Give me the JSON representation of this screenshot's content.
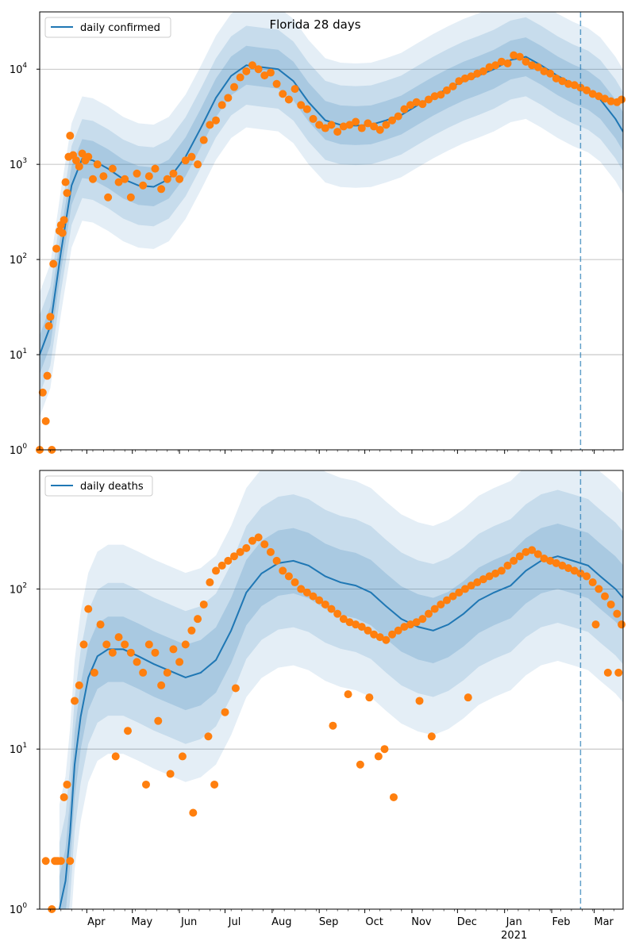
{
  "figure": {
    "title": "Florida 28 days"
  },
  "colors": {
    "line": "#1f77b4",
    "band": "#1f77b4",
    "points": "#ff7f0e",
    "grid": "#b0b0b0",
    "marker_line": "#1f77b4"
  },
  "chart_data": [
    {
      "type": "line",
      "name": "confirmed",
      "title": "Florida 28 days",
      "y_scale": "log",
      "ylim": [
        1,
        40000
      ],
      "xlim": [
        "2020-03-01",
        "2021-03-20"
      ],
      "y_ticks": [
        {
          "value": 1,
          "base": "10",
          "exp": "0"
        },
        {
          "value": 10,
          "base": "10",
          "exp": "1"
        },
        {
          "value": 100,
          "base": "10",
          "exp": "2"
        },
        {
          "value": 1000,
          "base": "10",
          "exp": "3"
        },
        {
          "value": 10000,
          "base": "10",
          "exp": "4"
        }
      ],
      "grid": "horizontal",
      "legend_position": "top-left",
      "series": [
        {
          "name": "daily confirmed"
        }
      ],
      "vertical_marker": "2021-02-20",
      "x_model": [
        "2020-03-01",
        "2020-03-08",
        "2020-03-15",
        "2020-03-22",
        "2020-03-29",
        "2020-04-05",
        "2020-04-15",
        "2020-04-25",
        "2020-05-05",
        "2020-05-15",
        "2020-05-25",
        "2020-06-05",
        "2020-06-15",
        "2020-06-25",
        "2020-07-05",
        "2020-07-15",
        "2020-07-25",
        "2020-08-05",
        "2020-08-15",
        "2020-08-25",
        "2020-09-05",
        "2020-09-15",
        "2020-09-25",
        "2020-10-05",
        "2020-10-15",
        "2020-10-25",
        "2020-11-05",
        "2020-11-15",
        "2020-11-25",
        "2020-12-05",
        "2020-12-15",
        "2020-12-25",
        "2021-01-05",
        "2021-01-15",
        "2021-01-25",
        "2021-02-05",
        "2021-02-15",
        "2021-02-25",
        "2021-03-05",
        "2021-03-15",
        "2021-03-20"
      ],
      "model": [
        10,
        20,
        120,
        600,
        1150,
        1100,
        900,
        700,
        600,
        580,
        700,
        1200,
        2400,
        5000,
        8500,
        11000,
        10500,
        10000,
        7500,
        4500,
        2900,
        2600,
        2550,
        2600,
        2900,
        3300,
        4200,
        5200,
        6300,
        7500,
        8600,
        10000,
        12500,
        13500,
        11000,
        8500,
        7000,
        6000,
        4800,
        3000,
        2200
      ],
      "observed": {
        "x": [
          "2020-03-01",
          "2020-03-03",
          "2020-03-05",
          "2020-03-06",
          "2020-03-07",
          "2020-03-08",
          "2020-03-09",
          "2020-03-10",
          "2020-03-12",
          "2020-03-14",
          "2020-03-15",
          "2020-03-16",
          "2020-03-17",
          "2020-03-18",
          "2020-03-19",
          "2020-03-20",
          "2020-03-21",
          "2020-03-23",
          "2020-03-25",
          "2020-03-27",
          "2020-03-29",
          "2020-03-31",
          "2020-04-02",
          "2020-04-05",
          "2020-04-08",
          "2020-04-12",
          "2020-04-15",
          "2020-04-18",
          "2020-04-22",
          "2020-04-26",
          "2020-04-30",
          "2020-05-04",
          "2020-05-08",
          "2020-05-12",
          "2020-05-16",
          "2020-05-20",
          "2020-05-24",
          "2020-05-28",
          "2020-06-01",
          "2020-06-05",
          "2020-06-09",
          "2020-06-13",
          "2020-06-17",
          "2020-06-21",
          "2020-06-25",
          "2020-06-29",
          "2020-07-03",
          "2020-07-07",
          "2020-07-11",
          "2020-07-15",
          "2020-07-19",
          "2020-07-23",
          "2020-07-27",
          "2020-07-31",
          "2020-08-04",
          "2020-08-08",
          "2020-08-12",
          "2020-08-16",
          "2020-08-20",
          "2020-08-24",
          "2020-08-28",
          "2020-09-01",
          "2020-09-05",
          "2020-09-09",
          "2020-09-13",
          "2020-09-17",
          "2020-09-21",
          "2020-09-25",
          "2020-09-29",
          "2020-10-03",
          "2020-10-07",
          "2020-10-11",
          "2020-10-15",
          "2020-10-19",
          "2020-10-23",
          "2020-10-27",
          "2020-10-31",
          "2020-11-04",
          "2020-11-08",
          "2020-11-12",
          "2020-11-16",
          "2020-11-20",
          "2020-11-24",
          "2020-11-28",
          "2020-12-02",
          "2020-12-06",
          "2020-12-10",
          "2020-12-14",
          "2020-12-18",
          "2020-12-22",
          "2020-12-26",
          "2020-12-30",
          "2021-01-03",
          "2021-01-07",
          "2021-01-11",
          "2021-01-15",
          "2021-01-19",
          "2021-01-23",
          "2021-01-27",
          "2021-01-31",
          "2021-02-04",
          "2021-02-08",
          "2021-02-12",
          "2021-02-16",
          "2021-02-20",
          "2021-02-24",
          "2021-02-28",
          "2021-03-04",
          "2021-03-08",
          "2021-03-12",
          "2021-03-16",
          "2021-03-19"
        ],
        "y": [
          1,
          4,
          2,
          6,
          20,
          25,
          1,
          90,
          130,
          200,
          230,
          190,
          260,
          650,
          500,
          1200,
          2000,
          1250,
          1100,
          950,
          1300,
          1100,
          1200,
          700,
          1000,
          750,
          450,
          900,
          650,
          700,
          450,
          800,
          600,
          750,
          900,
          550,
          700,
          800,
          700,
          1100,
          1200,
          1000,
          1800,
          2600,
          2900,
          4200,
          5000,
          6500,
          8200,
          9500,
          11000,
          10000,
          8600,
          9200,
          7000,
          5500,
          4800,
          6200,
          4200,
          3800,
          3000,
          2600,
          2400,
          2600,
          2200,
          2500,
          2600,
          2800,
          2400,
          2700,
          2500,
          2300,
          2600,
          2900,
          3200,
          3800,
          4200,
          4500,
          4300,
          4800,
          5200,
          5400,
          6000,
          6600,
          7500,
          8000,
          8400,
          9000,
          9500,
          10500,
          11000,
          12000,
          11500,
          14000,
          13500,
          12000,
          11000,
          10500,
          9500,
          9000,
          8000,
          7500,
          7000,
          6800,
          6400,
          6000,
          5500,
          5200,
          4900,
          4600,
          4500,
          4800
        ]
      }
    },
    {
      "type": "line",
      "name": "deaths",
      "y_scale": "log",
      "ylim": [
        1,
        550
      ],
      "xlim": [
        "2020-03-01",
        "2021-03-20"
      ],
      "y_ticks": [
        {
          "value": 1,
          "base": "10",
          "exp": "0"
        },
        {
          "value": 10,
          "base": "10",
          "exp": "1"
        },
        {
          "value": 100,
          "base": "10",
          "exp": "2"
        }
      ],
      "grid": "horizontal",
      "legend_position": "top-left",
      "series": [
        {
          "name": "daily deaths"
        }
      ],
      "vertical_marker": "2021-02-20",
      "x_ticks": [
        {
          "date": "2020-04-01",
          "label": "Apr"
        },
        {
          "date": "2020-05-01",
          "label": "May"
        },
        {
          "date": "2020-06-01",
          "label": "Jun"
        },
        {
          "date": "2020-07-01",
          "label": "Jul"
        },
        {
          "date": "2020-08-01",
          "label": "Aug"
        },
        {
          "date": "2020-09-01",
          "label": "Sep"
        },
        {
          "date": "2020-10-01",
          "label": "Oct"
        },
        {
          "date": "2020-11-01",
          "label": "Nov"
        },
        {
          "date": "2020-12-01",
          "label": "Dec"
        },
        {
          "date": "2021-01-01",
          "label": "Jan",
          "sub": "2021"
        },
        {
          "date": "2021-02-01",
          "label": "Feb"
        },
        {
          "date": "2021-03-01",
          "label": "Mar"
        }
      ],
      "x_model": [
        "2020-03-14",
        "2020-03-18",
        "2020-03-21",
        "2020-03-24",
        "2020-03-28",
        "2020-04-02",
        "2020-04-08",
        "2020-04-15",
        "2020-04-25",
        "2020-05-05",
        "2020-05-15",
        "2020-05-25",
        "2020-06-05",
        "2020-06-15",
        "2020-06-25",
        "2020-07-05",
        "2020-07-15",
        "2020-07-25",
        "2020-08-05",
        "2020-08-15",
        "2020-08-25",
        "2020-09-05",
        "2020-09-15",
        "2020-09-25",
        "2020-10-05",
        "2020-10-15",
        "2020-10-25",
        "2020-11-05",
        "2020-11-15",
        "2020-11-25",
        "2020-12-05",
        "2020-12-15",
        "2020-12-25",
        "2021-01-05",
        "2021-01-15",
        "2021-01-25",
        "2021-02-05",
        "2021-02-15",
        "2021-02-25",
        "2021-03-05",
        "2021-03-15",
        "2021-03-20"
      ],
      "model": [
        1,
        1.5,
        3,
        8,
        16,
        28,
        38,
        42,
        42,
        38,
        34,
        31,
        28,
        30,
        36,
        55,
        95,
        125,
        145,
        150,
        140,
        120,
        110,
        105,
        95,
        78,
        65,
        58,
        55,
        60,
        70,
        85,
        95,
        105,
        130,
        150,
        160,
        150,
        140,
        120,
        100,
        88
      ],
      "observed": {
        "x": [
          "2020-03-05",
          "2020-03-09",
          "2020-03-11",
          "2020-03-12",
          "2020-03-13",
          "2020-03-15",
          "2020-03-17",
          "2020-03-19",
          "2020-03-21",
          "2020-03-24",
          "2020-03-27",
          "2020-03-30",
          "2020-04-02",
          "2020-04-06",
          "2020-04-10",
          "2020-04-14",
          "2020-04-18",
          "2020-04-22",
          "2020-04-26",
          "2020-04-30",
          "2020-05-04",
          "2020-05-08",
          "2020-05-12",
          "2020-05-16",
          "2020-05-20",
          "2020-05-24",
          "2020-05-28",
          "2020-06-01",
          "2020-06-05",
          "2020-06-09",
          "2020-06-13",
          "2020-06-17",
          "2020-06-21",
          "2020-06-25",
          "2020-06-29",
          "2020-07-03",
          "2020-07-07",
          "2020-07-11",
          "2020-07-15",
          "2020-07-19",
          "2020-07-23",
          "2020-07-27",
          "2020-07-31",
          "2020-08-04",
          "2020-08-08",
          "2020-08-12",
          "2020-08-16",
          "2020-08-20",
          "2020-08-24",
          "2020-08-28",
          "2020-09-01",
          "2020-09-05",
          "2020-09-09",
          "2020-09-13",
          "2020-09-17",
          "2020-09-21",
          "2020-09-25",
          "2020-09-29",
          "2020-10-03",
          "2020-10-07",
          "2020-10-11",
          "2020-10-15",
          "2020-10-19",
          "2020-10-23",
          "2020-10-27",
          "2020-10-31",
          "2020-11-04",
          "2020-11-08",
          "2020-11-12",
          "2020-11-16",
          "2020-11-20",
          "2020-11-24",
          "2020-11-28",
          "2020-12-02",
          "2020-12-06",
          "2020-12-10",
          "2020-12-14",
          "2020-12-18",
          "2020-12-22",
          "2020-12-26",
          "2020-12-30",
          "2021-01-03",
          "2021-01-07",
          "2021-01-11",
          "2021-01-15",
          "2021-01-19",
          "2021-01-23",
          "2021-01-27",
          "2021-01-31",
          "2021-02-04",
          "2021-02-08",
          "2021-02-12",
          "2021-02-16",
          "2021-02-20",
          "2021-02-24",
          "2021-02-28",
          "2021-03-04",
          "2021-03-08",
          "2021-03-12",
          "2021-03-16",
          "2021-03-19"
        ],
        "y": [
          2,
          1,
          2,
          2,
          2,
          2,
          5,
          6,
          2,
          20,
          25,
          45,
          75,
          30,
          60,
          45,
          40,
          50,
          45,
          40,
          35,
          30,
          45,
          40,
          25,
          30,
          42,
          35,
          45,
          55,
          65,
          80,
          110,
          130,
          140,
          150,
          160,
          170,
          180,
          200,
          210,
          190,
          170,
          150,
          130,
          120,
          110,
          100,
          95,
          90,
          85,
          80,
          75,
          70,
          65,
          62,
          60,
          58,
          55,
          52,
          50,
          48,
          52,
          55,
          58,
          60,
          62,
          65,
          70,
          75,
          80,
          85,
          90,
          95,
          100,
          105,
          110,
          115,
          120,
          125,
          130,
          140,
          150,
          160,
          170,
          175,
          165,
          155,
          150,
          145,
          140,
          135,
          130,
          125,
          120,
          110,
          100,
          90,
          80,
          70,
          60
        ]
      },
      "low_outliers": {
        "x": [
          "2020-04-20",
          "2020-04-28",
          "2020-05-10",
          "2020-05-18",
          "2020-05-26",
          "2020-06-03",
          "2020-06-10",
          "2020-06-20",
          "2020-06-24",
          "2020-07-01",
          "2020-07-08",
          "2020-09-10",
          "2020-09-20",
          "2020-09-28",
          "2020-10-04",
          "2020-10-10",
          "2020-10-14",
          "2020-10-20",
          "2020-11-06",
          "2020-11-14",
          "2020-12-08",
          "2021-03-02",
          "2021-03-10",
          "2021-03-17"
        ],
        "y": [
          9,
          13,
          6,
          15,
          7,
          9,
          4,
          12,
          6,
          17,
          24,
          14,
          22,
          8,
          21,
          9,
          10,
          5,
          20,
          12,
          21,
          60,
          30,
          30
        ]
      }
    }
  ]
}
